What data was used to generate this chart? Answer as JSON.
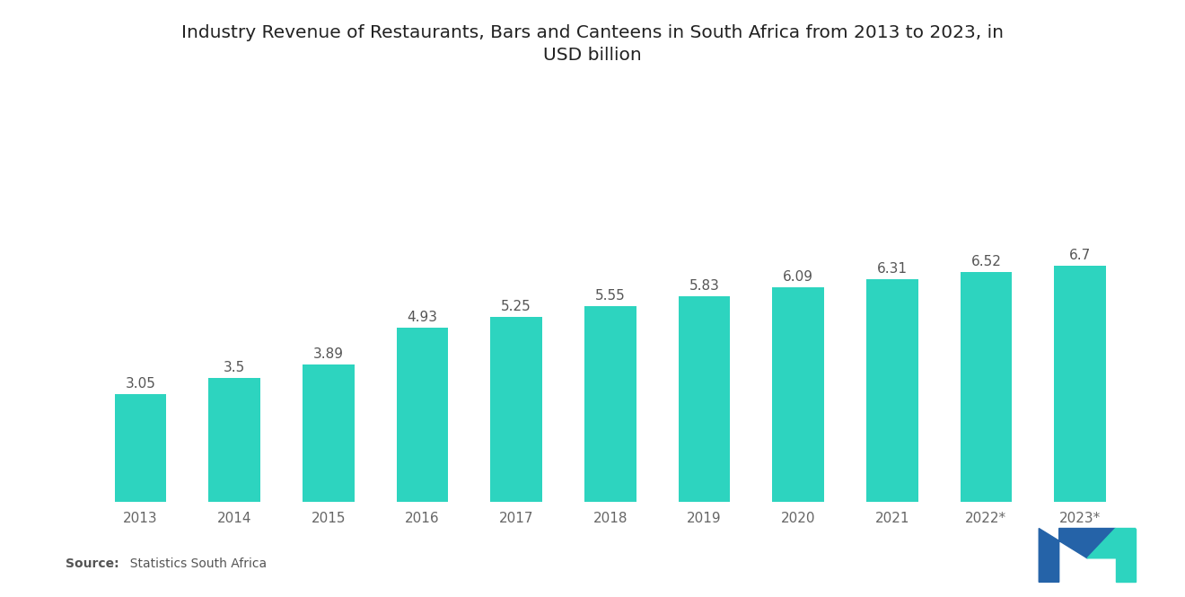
{
  "title_line1": "Industry Revenue of Restaurants, Bars and Canteens in South Africa from 2013 to 2023, in",
  "title_line2": "USD billion",
  "categories": [
    "2013",
    "2014",
    "2015",
    "2016",
    "2017",
    "2018",
    "2019",
    "2020",
    "2021",
    "2022*",
    "2023*"
  ],
  "values": [
    3.05,
    3.5,
    3.89,
    4.93,
    5.25,
    5.55,
    5.83,
    6.09,
    6.31,
    6.52,
    6.7
  ],
  "bar_color": "#2DD4BF",
  "background_color": "#ffffff",
  "title_fontsize": 14.5,
  "label_fontsize": 11,
  "tick_fontsize": 11,
  "source_bold": "Source:",
  "source_rest": "  Statistics South Africa",
  "ylim": [
    0,
    9.5
  ],
  "bar_width": 0.55,
  "logo_color_left": "#2563a8",
  "logo_color_right": "#2DD4BF"
}
